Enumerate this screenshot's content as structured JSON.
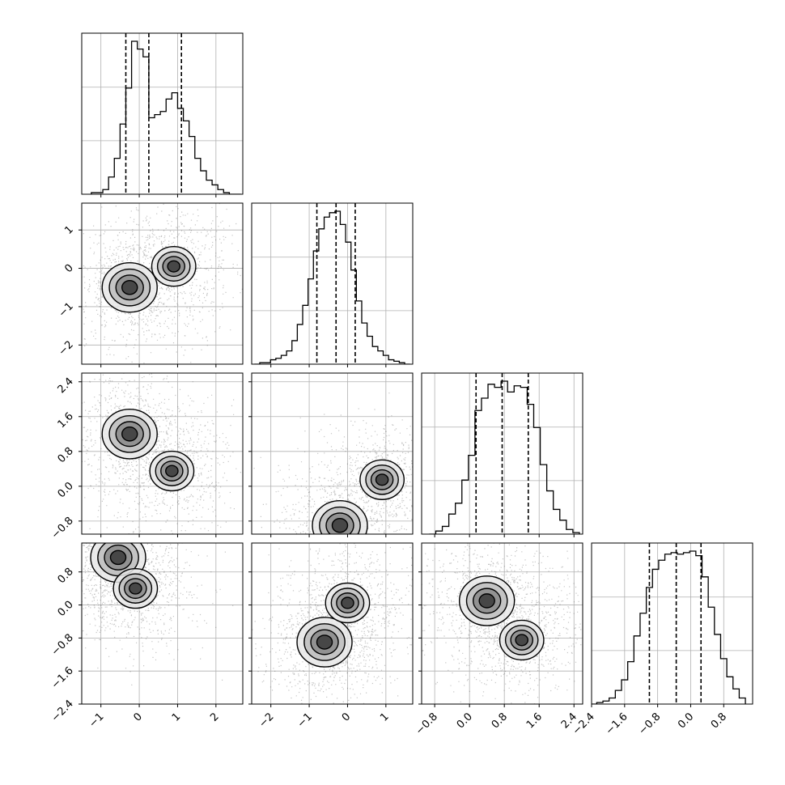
{
  "chart_data": {
    "type": "corner",
    "variables": 4,
    "grid": true,
    "variable_ranges": [
      [
        -1.5,
        2.7
      ],
      [
        -2.5,
        1.7
      ],
      [
        -1.1,
        2.6
      ],
      [
        -2.4,
        1.5
      ]
    ],
    "tick_values": [
      [
        -1,
        0,
        1,
        2
      ],
      [
        -2,
        -1,
        0,
        1
      ],
      [
        -0.8,
        0.0,
        0.8,
        1.6,
        2.4
      ],
      [
        -2.4,
        -1.6,
        -0.8,
        0.0,
        0.8
      ]
    ],
    "tick_labels": [
      [
        "−1",
        "0",
        "1",
        "2"
      ],
      [
        "−2",
        "−1",
        "0",
        "1"
      ],
      [
        "−0.8",
        "0.0",
        "0.8",
        "1.6",
        "2.4"
      ],
      [
        "−2.4",
        "−1.6",
        "−0.8",
        "0.0",
        "0.8"
      ]
    ],
    "quantiles": [
      [
        -0.35,
        0.25,
        1.1
      ],
      [
        -0.8,
        -0.3,
        0.2
      ],
      [
        0.15,
        0.75,
        1.35
      ],
      [
        -1.0,
        -0.35,
        0.25
      ]
    ],
    "histograms": [
      {
        "bin_centers": [
          -1.175,
          -1.025,
          -0.875,
          -0.725,
          -0.575,
          -0.425,
          -0.275,
          -0.125,
          0.025,
          0.175,
          0.325,
          0.475,
          0.625,
          0.775,
          0.925,
          1.075,
          1.225,
          1.375,
          1.525,
          1.675,
          1.825,
          1.975,
          2.125,
          2.275,
          2.425,
          2.575
        ],
        "counts": [
          1,
          1,
          3,
          11,
          23,
          45,
          68,
          98,
          93,
          88,
          49,
          51,
          53,
          61,
          65,
          55,
          47,
          37,
          23,
          15,
          9,
          6,
          3,
          1,
          0,
          0
        ]
      },
      {
        "bin_centers": [
          -2.36,
          -2.22,
          -2.08,
          -1.94,
          -1.8,
          -1.66,
          -1.52,
          -1.38,
          -1.24,
          -1.1,
          -0.96,
          -0.82,
          -0.68,
          -0.54,
          -0.4,
          -0.26,
          -0.12,
          0.02,
          0.16,
          0.3,
          0.44,
          0.58,
          0.72,
          0.86,
          1.0,
          1.14,
          1.28,
          1.42,
          1.56
        ],
        "counts": [
          0,
          1,
          1,
          3,
          4,
          6,
          9,
          16,
          27,
          40,
          58,
          77,
          92,
          100,
          103,
          104,
          95,
          83,
          64,
          43,
          28,
          19,
          12,
          9,
          6,
          3,
          2,
          1,
          0
        ]
      },
      {
        "bin_centers": [
          -0.85,
          -0.7,
          -0.55,
          -0.4,
          -0.25,
          -0.1,
          0.05,
          0.2,
          0.35,
          0.5,
          0.65,
          0.8,
          0.95,
          1.1,
          1.25,
          1.4,
          1.55,
          1.7,
          1.85,
          2.0,
          2.15,
          2.3,
          2.45
        ],
        "counts": [
          0,
          2,
          5,
          13,
          20,
          35,
          51,
          80,
          88,
          97,
          95,
          99,
          92,
          96,
          95,
          84,
          69,
          45,
          28,
          16,
          9,
          3,
          1
        ]
      },
      {
        "bin_centers": [
          -2.35,
          -2.2,
          -2.05,
          -1.9,
          -1.75,
          -1.6,
          -1.45,
          -1.3,
          -1.15,
          -1.0,
          -0.85,
          -0.7,
          -0.55,
          -0.4,
          -0.25,
          -0.1,
          0.05,
          0.2,
          0.35,
          0.5,
          0.65,
          0.8,
          0.95,
          1.1,
          1.25
        ],
        "counts": [
          0,
          1,
          2,
          4,
          9,
          16,
          28,
          45,
          60,
          77,
          89,
          95,
          99,
          100,
          99,
          100,
          101,
          98,
          84,
          64,
          46,
          30,
          18,
          10,
          4
        ]
      }
    ],
    "density_peaks": [
      [
        [
          -0.25,
          -0.5,
          1.0
        ],
        [
          0.9,
          0.05,
          0.8
        ]
      ],
      [
        [
          -0.25,
          1.2,
          1.0
        ],
        [
          0.85,
          0.35,
          0.8
        ]
      ],
      [
        [
          -0.2,
          -0.9,
          1.0
        ],
        [
          0.9,
          0.15,
          0.8
        ]
      ],
      [
        [
          -0.55,
          1.15,
          1.0
        ],
        [
          -0.1,
          0.4,
          0.8
        ]
      ],
      [
        [
          -0.6,
          -0.9,
          1.0
        ],
        [
          0.0,
          0.05,
          0.8
        ]
      ],
      [
        [
          0.4,
          0.1,
          1.0
        ],
        [
          1.2,
          -0.85,
          0.8
        ]
      ]
    ],
    "contour_levels": [
      0.12,
      0.35,
      0.6,
      0.85
    ]
  }
}
